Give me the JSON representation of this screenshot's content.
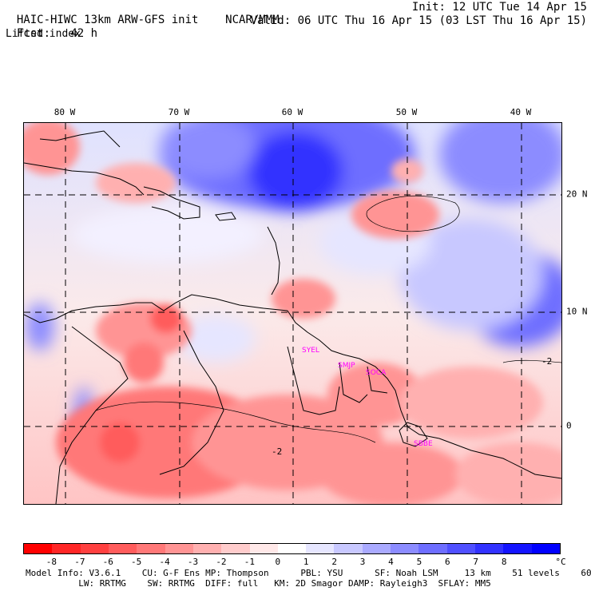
{
  "header": {
    "model_title": "HAIC-HIWC 13km ARW-GFS init",
    "org": "NCAR/MMM",
    "init_time": "Init: 12 UTC Tue 14 Apr 15",
    "forecast_label": "Fcst:",
    "forecast_hours": "42 h",
    "valid_time": "Valid: 06 UTC Thu 16 Apr 15 (03 LST Thu 16 Apr 15)",
    "field_name": "Lifted index"
  },
  "map": {
    "longitude_labels": [
      "80 W",
      "70 W",
      "60 W",
      "50 W",
      "40 W"
    ],
    "latitude_labels": [
      "20 N",
      "10 N",
      "0"
    ],
    "station_labels": [
      "SYEL",
      "SMJP",
      "SOCA",
      "SBBE"
    ],
    "contour_labels": [
      "-2",
      "-2"
    ],
    "colors": {
      "negative_strong": "#ff1a1a",
      "neutral": "#ffffff",
      "positive_strong": "#0000ff",
      "station_label": "#ff00ff"
    }
  },
  "colorbar": {
    "labels": [
      "-8",
      "-7",
      "-6",
      "-5",
      "-4",
      "-3",
      "-2",
      "-1",
      "0",
      "1",
      "2",
      "3",
      "4",
      "5",
      "6",
      "7",
      "8"
    ],
    "unit": "°C",
    "colors": [
      "#ff0000",
      "#ff2626",
      "#ff4040",
      "#ff5c5c",
      "#ff7878",
      "#ff9494",
      "#ffb0b0",
      "#ffcccc",
      "#ffe8e8",
      "#ffffff",
      "#e6e6ff",
      "#c8c8ff",
      "#aaaaff",
      "#8c8cff",
      "#6e6eff",
      "#5050ff",
      "#3232ff",
      "#1414ff",
      "#0000ff"
    ]
  },
  "footer": {
    "line1": "Model Info: V3.6.1    CU: G-F Ens MP: Thompson      PBL: YSU      SF: Noah LSM     13 km    51 levels    60 sec",
    "line2": "          LW: RRTMG    SW: RRTMG  DIFF: full   KM: 2D Smagor DAMP: Rayleigh3  SFLAY: MM5"
  }
}
